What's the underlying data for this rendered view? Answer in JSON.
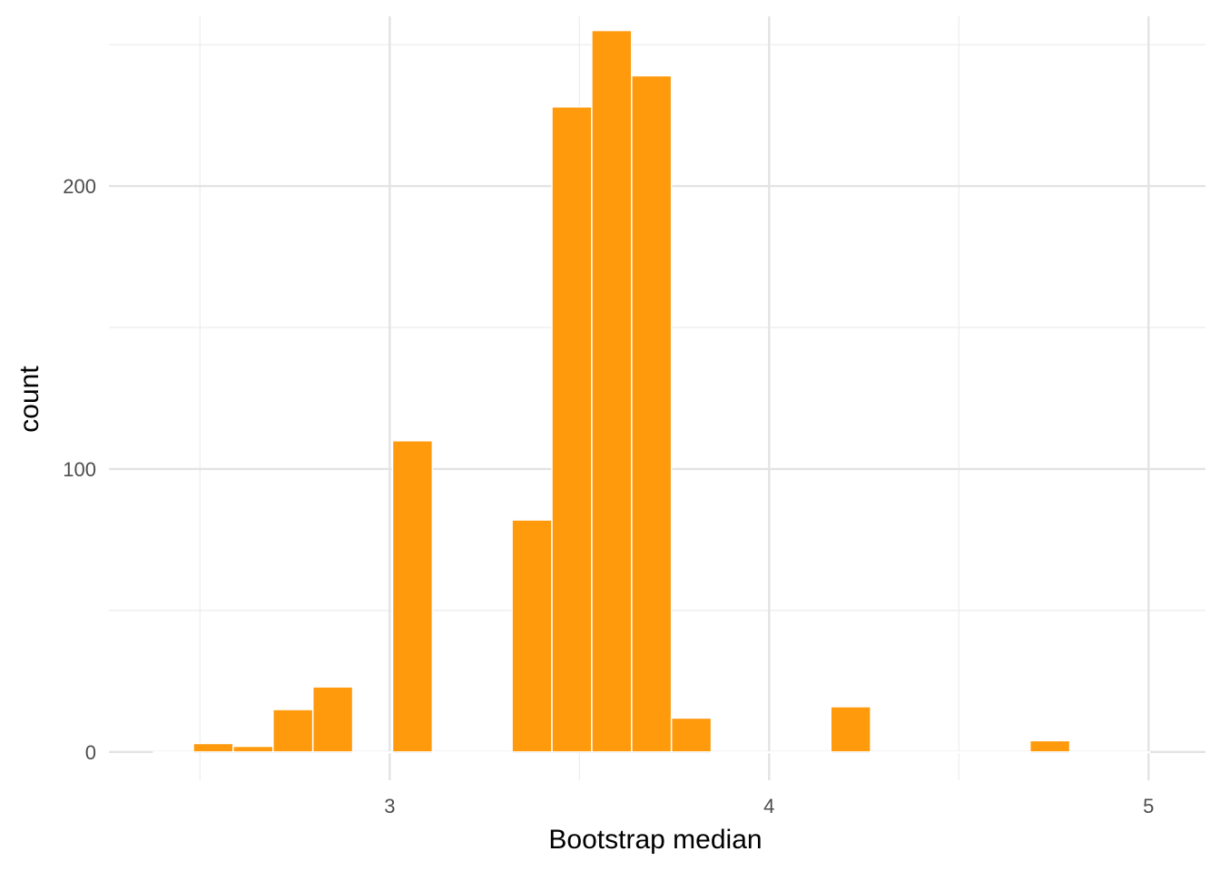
{
  "chart_data": {
    "type": "bar",
    "title": "",
    "xlabel": "Bootstrap median",
    "ylabel": "count",
    "xlim": [
      2.26,
      5.15
    ],
    "ylim": [
      -10,
      260
    ],
    "x_ticks": [
      3,
      4,
      5
    ],
    "x_tick_labels": [
      "3",
      "4",
      "5"
    ],
    "x_minor_ticks": [
      2.5,
      3.5,
      4.5
    ],
    "y_ticks": [
      0,
      100,
      200
    ],
    "y_tick_labels": [
      "0",
      "100",
      "200"
    ],
    "y_minor_ticks": [
      50,
      150,
      250
    ],
    "grid": true,
    "bin_width": 0.105,
    "bars": [
      {
        "x": 2.43,
        "value": 0
      },
      {
        "x": 2.535,
        "value": 3
      },
      {
        "x": 2.64,
        "value": 2
      },
      {
        "x": 2.745,
        "value": 15
      },
      {
        "x": 2.85,
        "value": 23
      },
      {
        "x": 2.955,
        "value": 0
      },
      {
        "x": 3.06,
        "value": 110
      },
      {
        "x": 3.165,
        "value": 0
      },
      {
        "x": 3.27,
        "value": 0
      },
      {
        "x": 3.375,
        "value": 82
      },
      {
        "x": 3.48,
        "value": 228
      },
      {
        "x": 3.585,
        "value": 255
      },
      {
        "x": 3.69,
        "value": 239
      },
      {
        "x": 3.795,
        "value": 12
      },
      {
        "x": 3.9,
        "value": 0
      },
      {
        "x": 4.005,
        "value": 0
      },
      {
        "x": 4.11,
        "value": 0
      },
      {
        "x": 4.215,
        "value": 16
      },
      {
        "x": 4.32,
        "value": 0
      },
      {
        "x": 4.425,
        "value": 0
      },
      {
        "x": 4.53,
        "value": 0
      },
      {
        "x": 4.635,
        "value": 0
      },
      {
        "x": 4.74,
        "value": 4
      },
      {
        "x": 4.845,
        "value": 0
      },
      {
        "x": 4.95,
        "value": 0
      }
    ],
    "colors": {
      "bar_fill": "#FF9A0D",
      "bar_stroke": "#ffffff",
      "grid_major": "#e3e3e3",
      "grid_minor": "#ececec"
    }
  }
}
